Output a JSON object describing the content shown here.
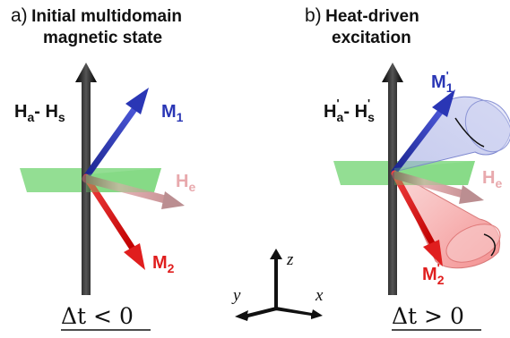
{
  "panel_a": {
    "label": "a)",
    "title_line1": "Initial multidomain",
    "title_line2": "magnetic state",
    "field_main": "H",
    "field_main_sub": "a",
    "field_dash": "- ",
    "field_second": "H",
    "field_second_sub": "s",
    "m1": "M",
    "m1_sub": "1",
    "m2": "M",
    "m2_sub": "2",
    "he": "H",
    "he_sub": "e",
    "time": "Δt < 0"
  },
  "panel_b": {
    "label": "b)",
    "title_line1": "Heat-driven",
    "title_line2": "excitation",
    "field_main": "H",
    "field_main_sub": "a",
    "field_dash": "- ",
    "field_second": "H",
    "field_second_sub": "s",
    "prime": "'",
    "m1": "M",
    "m1_sub": "1",
    "m2": "M",
    "m2_sub": "2",
    "he": "H",
    "he_sub": "e",
    "time": "Δt > 0"
  },
  "axes": {
    "x": "x",
    "y": "y",
    "z": "z"
  },
  "colors": {
    "m1": "#2a36b5",
    "m2": "#e01e1e",
    "he": "#e8a9ad",
    "field": "#111111",
    "plane": "#6fd36f",
    "cone_blue": "#b9bfe9",
    "cone_red": "#f3a0a0"
  }
}
